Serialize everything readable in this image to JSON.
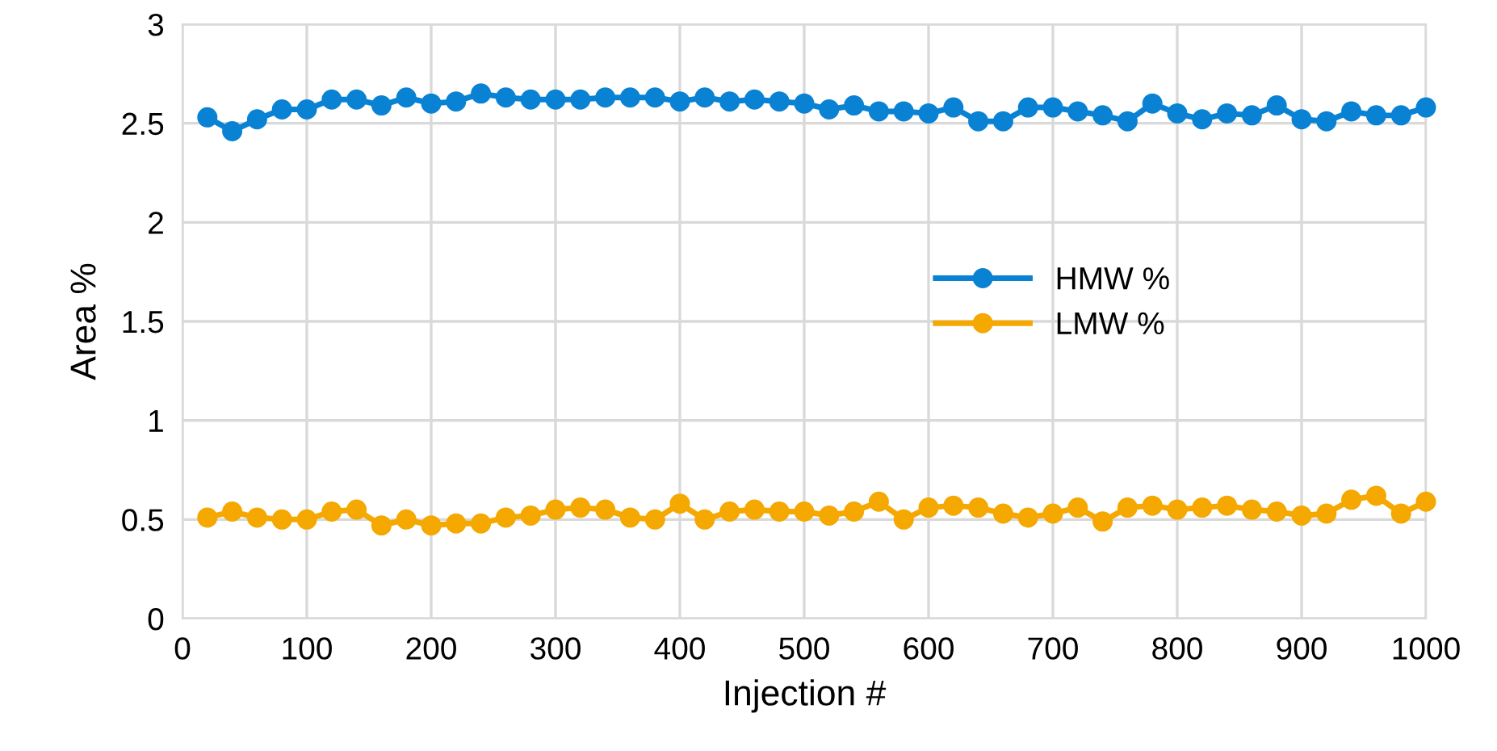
{
  "chart_data": {
    "type": "line",
    "xlabel": "Injection #",
    "ylabel": "Area %",
    "x": [
      20,
      40,
      60,
      80,
      100,
      120,
      140,
      160,
      180,
      200,
      220,
      240,
      260,
      280,
      300,
      320,
      340,
      360,
      380,
      400,
      420,
      440,
      460,
      480,
      500,
      520,
      540,
      560,
      580,
      600,
      620,
      640,
      660,
      680,
      700,
      720,
      740,
      760,
      780,
      800,
      820,
      840,
      860,
      880,
      900,
      920,
      940,
      960,
      980,
      1000
    ],
    "series": [
      {
        "name": "HMW %",
        "color": "#0a82d4",
        "values": [
          2.53,
          2.46,
          2.52,
          2.57,
          2.57,
          2.62,
          2.62,
          2.59,
          2.63,
          2.6,
          2.61,
          2.65,
          2.63,
          2.62,
          2.62,
          2.62,
          2.63,
          2.63,
          2.63,
          2.61,
          2.63,
          2.61,
          2.62,
          2.61,
          2.6,
          2.57,
          2.59,
          2.56,
          2.56,
          2.55,
          2.58,
          2.51,
          2.51,
          2.58,
          2.58,
          2.56,
          2.54,
          2.51,
          2.6,
          2.55,
          2.52,
          2.55,
          2.54,
          2.59,
          2.52,
          2.51,
          2.56,
          2.54,
          2.54,
          2.58
        ]
      },
      {
        "name": "LMW %",
        "color": "#f4a800",
        "values": [
          0.51,
          0.54,
          0.51,
          0.5,
          0.5,
          0.54,
          0.55,
          0.47,
          0.5,
          0.47,
          0.48,
          0.48,
          0.51,
          0.52,
          0.55,
          0.56,
          0.55,
          0.51,
          0.5,
          0.58,
          0.5,
          0.54,
          0.55,
          0.54,
          0.54,
          0.52,
          0.54,
          0.59,
          0.5,
          0.56,
          0.57,
          0.56,
          0.53,
          0.51,
          0.53,
          0.56,
          0.49,
          0.56,
          0.57,
          0.55,
          0.56,
          0.57,
          0.55,
          0.54,
          0.52,
          0.53,
          0.6,
          0.62,
          0.53,
          0.59
        ]
      }
    ],
    "xlim": [
      0,
      1000
    ],
    "xticks": [
      0,
      100,
      200,
      300,
      400,
      500,
      600,
      700,
      800,
      900,
      1000
    ],
    "ylim": [
      0,
      3
    ],
    "yticks": [
      0,
      {
        "value": 0.5,
        "label": "0.5"
      },
      1,
      {
        "value": 1.5,
        "label": "1.5"
      },
      2,
      {
        "value": 2.5,
        "label": "2.5"
      },
      3
    ],
    "grid": true,
    "legend": "center",
    "marker": "circle",
    "line_style": "solid"
  }
}
